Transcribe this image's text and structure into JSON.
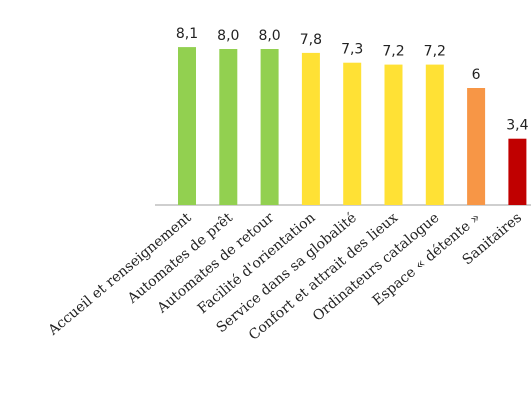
{
  "chart_data": {
    "type": "bar",
    "categories": [
      "Accueil et renseignement",
      "Automates de prêt",
      "Automates de retour",
      "Facilité d'orientation",
      "Service dans sa globalité",
      "Confort et attrait des lieux",
      "Ordinateurs catalogue",
      "Espace « détente »",
      "Sanitaires"
    ],
    "values": [
      8.1,
      8.0,
      8.0,
      7.8,
      7.3,
      7.2,
      7.2,
      6,
      3.4
    ],
    "value_labels": [
      "8,1",
      "8,0",
      "8,0",
      "7,8",
      "7,3",
      "7,2",
      "7,2",
      "6",
      "3,4"
    ],
    "colors": [
      "#92d050",
      "#92d050",
      "#92d050",
      "#ffe135",
      "#ffe135",
      "#ffe135",
      "#ffe135",
      "#f79646",
      "#c00000"
    ],
    "title": "",
    "xlabel": "",
    "ylabel": "",
    "grid": false,
    "legend": "none"
  }
}
